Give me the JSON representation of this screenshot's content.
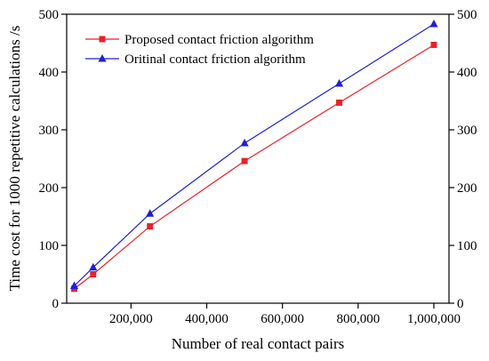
{
  "chart_data": {
    "type": "line",
    "title": "",
    "xlabel": "Number of real contact pairs",
    "ylabel": "Time cost for 1000 repetitive calculations /s",
    "xlim": [
      30000,
      1040000
    ],
    "ylim": [
      0,
      500
    ],
    "x_ticks": [
      200000,
      400000,
      600000,
      800000,
      1000000
    ],
    "x_tick_labels": [
      "200,000",
      "400,000",
      "600,000",
      "800,000",
      "1,000,000"
    ],
    "y_ticks": [
      0,
      100,
      200,
      300,
      400,
      500
    ],
    "y_tick_labels": [
      "0",
      "100",
      "200",
      "300",
      "400",
      "500"
    ],
    "right_y_axis_mirror": true,
    "grid": false,
    "legend_position": "top-left",
    "series": [
      {
        "name": "Proposed contact friction algorithm",
        "color": "#e8212a",
        "marker": "square",
        "x": [
          50000,
          100000,
          250000,
          500000,
          750000,
          1000000
        ],
        "y": [
          25,
          50,
          133,
          246,
          347,
          447
        ]
      },
      {
        "name": "Oritinal contact friction algorithm",
        "color": "#1f1fd6",
        "marker": "triangle",
        "x": [
          50000,
          100000,
          250000,
          500000,
          750000,
          1000000
        ],
        "y": [
          30,
          62,
          155,
          277,
          380,
          483
        ]
      }
    ]
  }
}
